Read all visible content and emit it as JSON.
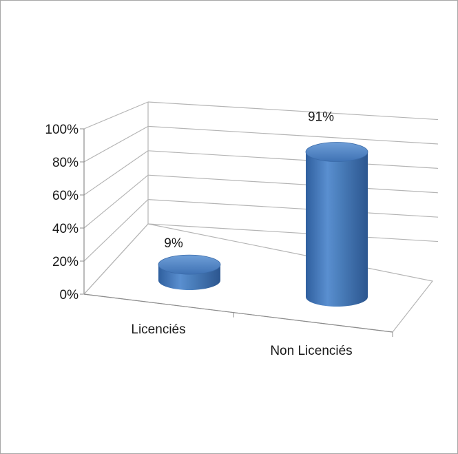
{
  "chart_data": {
    "type": "bar",
    "style": "3d-cylinder",
    "categories": [
      "Licenciés",
      "Non Licenciés"
    ],
    "values": [
      9,
      91
    ],
    "data_labels": [
      "9%",
      "91%"
    ],
    "y_ticks": [
      "0%",
      "20%",
      "40%",
      "60%",
      "80%",
      "100%"
    ],
    "ylim": [
      0,
      100
    ],
    "grid": true,
    "legend": "none",
    "bar_color": "#4a7ebb"
  }
}
